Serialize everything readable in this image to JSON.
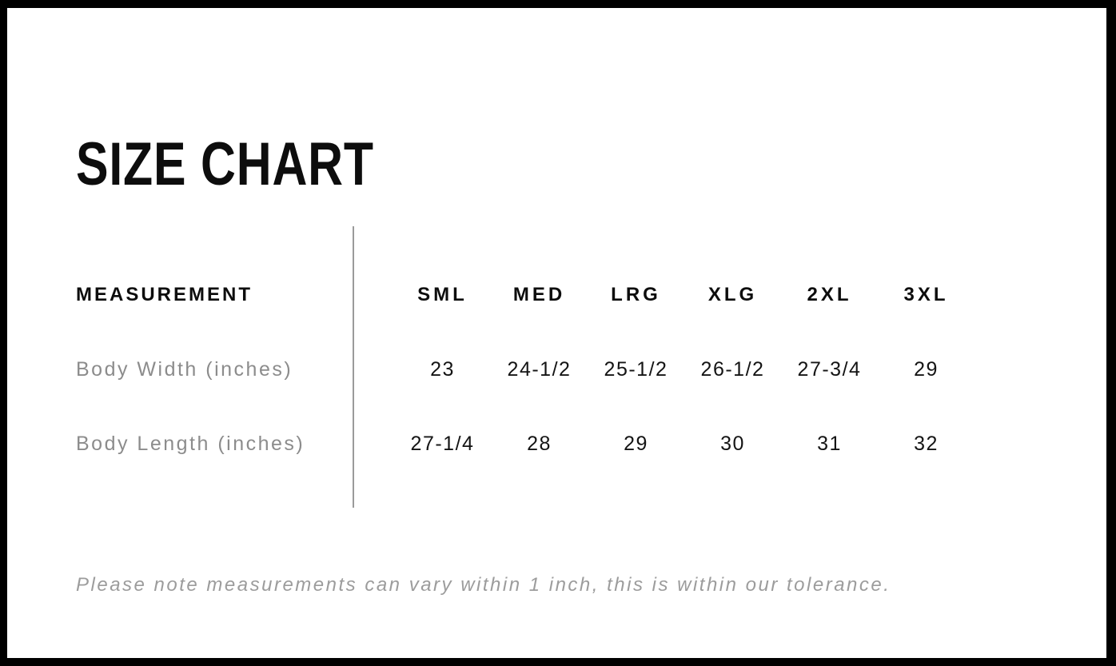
{
  "title": "SIZE CHART",
  "table": {
    "measurement_header": "MEASUREMENT",
    "size_headers": [
      "SML",
      "MED",
      "LRG",
      "XLG",
      "2XL",
      "3XL"
    ],
    "rows": [
      {
        "label": "Body Width (inches)",
        "values": [
          "23",
          "24-1/2",
          "25-1/2",
          "26-1/2",
          "27-3/4",
          "29"
        ]
      },
      {
        "label": "Body Length (inches)",
        "values": [
          "27-1/4",
          "28",
          "29",
          "30",
          "31",
          "32"
        ]
      }
    ]
  },
  "note": "Please note measurements can vary within 1 inch, this is within our tolerance.",
  "colors": {
    "frame": "#000000",
    "heading_text": "#0d0d0d",
    "value_text": "#141414",
    "label_gray": "#8c8c8c",
    "note_gray": "#9c9c9c",
    "divider_gray": "#9a9a9a",
    "background": "#ffffff"
  },
  "chart_data": {
    "type": "table",
    "title": "SIZE CHART",
    "columns": [
      "MEASUREMENT",
      "SML",
      "MED",
      "LRG",
      "XLG",
      "2XL",
      "3XL"
    ],
    "rows": [
      [
        "Body Width (inches)",
        "23",
        "24-1/2",
        "25-1/2",
        "26-1/2",
        "27-3/4",
        "29"
      ],
      [
        "Body Length (inches)",
        "27-1/4",
        "28",
        "29",
        "30",
        "31",
        "32"
      ]
    ],
    "footnote": "Please note measurements can vary within 1 inch, this is within our tolerance."
  }
}
